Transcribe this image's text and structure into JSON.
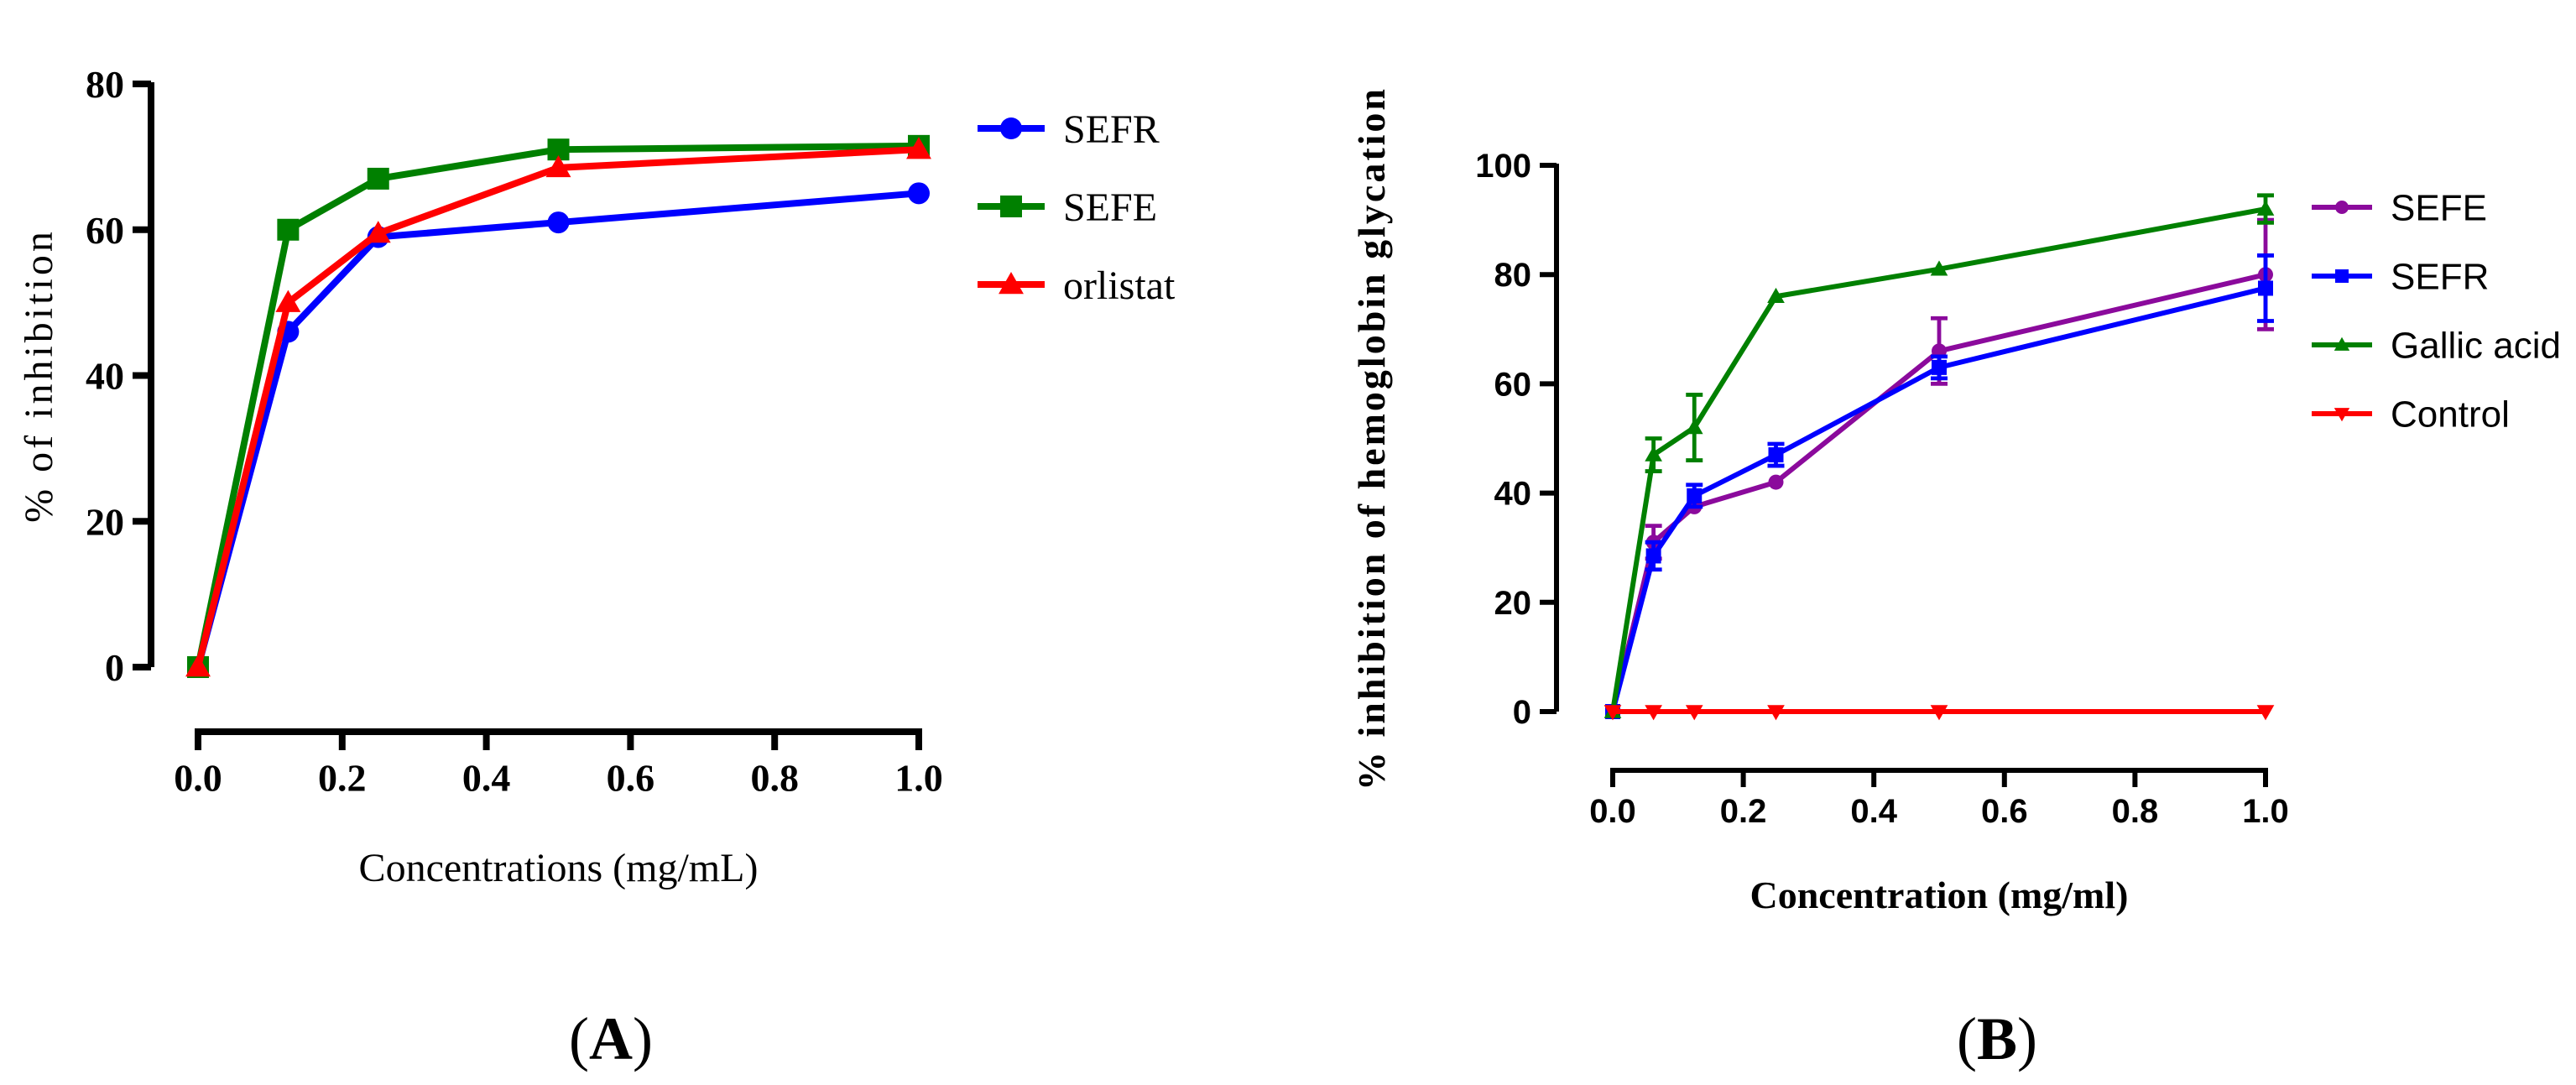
{
  "panels": [
    {
      "id": "A",
      "panel_label_paren_open": "(",
      "panel_label": "A",
      "panel_label_paren_close": ")"
    },
    {
      "id": "B",
      "panel_label_paren_open": "(",
      "panel_label": "B",
      "panel_label_paren_close": ")"
    }
  ],
  "chart_data": [
    {
      "type": "line",
      "title": "",
      "xlabel": "Concentrations (mg/mL)",
      "ylabel": "% of inhibition",
      "xlim": [
        0,
        1.0
      ],
      "ylim": [
        0,
        80
      ],
      "xticks": [
        0.0,
        0.2,
        0.4,
        0.6,
        0.8,
        1.0
      ],
      "xtick_labels": [
        "0.0",
        "0.2",
        "0.4",
        "0.6",
        "0.8",
        "1.0"
      ],
      "yticks": [
        0,
        20,
        40,
        60,
        80
      ],
      "ytick_labels": [
        "0",
        "20",
        "40",
        "60",
        "80"
      ],
      "legend": "right",
      "series": [
        {
          "name": "SEFR",
          "color": "#0000ff",
          "marker": "circle",
          "x": [
            0,
            0.125,
            0.25,
            0.5,
            1.0
          ],
          "y": [
            0,
            46,
            59,
            61,
            65
          ]
        },
        {
          "name": "SEFE",
          "color": "#008000",
          "marker": "square",
          "x": [
            0,
            0.125,
            0.25,
            0.5,
            1.0
          ],
          "y": [
            0,
            60,
            67,
            71,
            71.5
          ]
        },
        {
          "name": "orlistat",
          "color": "#ff0000",
          "marker": "triangle-up",
          "x": [
            0,
            0.125,
            0.25,
            0.5,
            1.0
          ],
          "y": [
            0,
            50,
            59.5,
            68.5,
            71
          ]
        }
      ]
    },
    {
      "type": "line",
      "title": "",
      "xlabel": "Concentration (mg/ml)",
      "ylabel": "% inhibition of hemoglobin glycation",
      "xlim": [
        0,
        1.0
      ],
      "ylim": [
        0,
        100
      ],
      "xticks": [
        0.0,
        0.2,
        0.4,
        0.6,
        0.8,
        1.0
      ],
      "xtick_labels": [
        "0.0",
        "0.2",
        "0.4",
        "0.6",
        "0.8",
        "1.0"
      ],
      "yticks": [
        0,
        20,
        40,
        60,
        80,
        100
      ],
      "ytick_labels": [
        "0",
        "20",
        "40",
        "60",
        "80",
        "100"
      ],
      "legend": "right",
      "series": [
        {
          "name": "SEFE",
          "color": "#8b0a9c",
          "marker": "circle",
          "x": [
            0,
            0.0625,
            0.125,
            0.25,
            0.5,
            1.0
          ],
          "y": [
            0,
            31,
            37.5,
            42,
            66,
            80
          ],
          "err": [
            0,
            3,
            0,
            0,
            6,
            10
          ]
        },
        {
          "name": "SEFR",
          "color": "#0000ff",
          "marker": "square",
          "x": [
            0,
            0.0625,
            0.125,
            0.25,
            0.5,
            1.0
          ],
          "y": [
            0,
            28.5,
            39.5,
            47,
            63,
            77.5
          ],
          "err": [
            0,
            2.5,
            2,
            2,
            2,
            6
          ]
        },
        {
          "name": "Gallic acid",
          "color": "#008000",
          "marker": "triangle-up",
          "x": [
            0,
            0.0625,
            0.125,
            0.25,
            0.5,
            1.0
          ],
          "y": [
            0,
            47,
            52,
            76,
            81,
            92
          ],
          "err": [
            0,
            3,
            6,
            0,
            0,
            2.5
          ]
        },
        {
          "name": "Control",
          "color": "#ff0000",
          "marker": "triangle-down",
          "x": [
            0,
            0.0625,
            0.125,
            0.25,
            0.5,
            1.0
          ],
          "y": [
            0,
            0,
            0,
            0,
            0,
            0
          ],
          "err": [
            0,
            0,
            0,
            0,
            0,
            0
          ]
        }
      ]
    }
  ]
}
